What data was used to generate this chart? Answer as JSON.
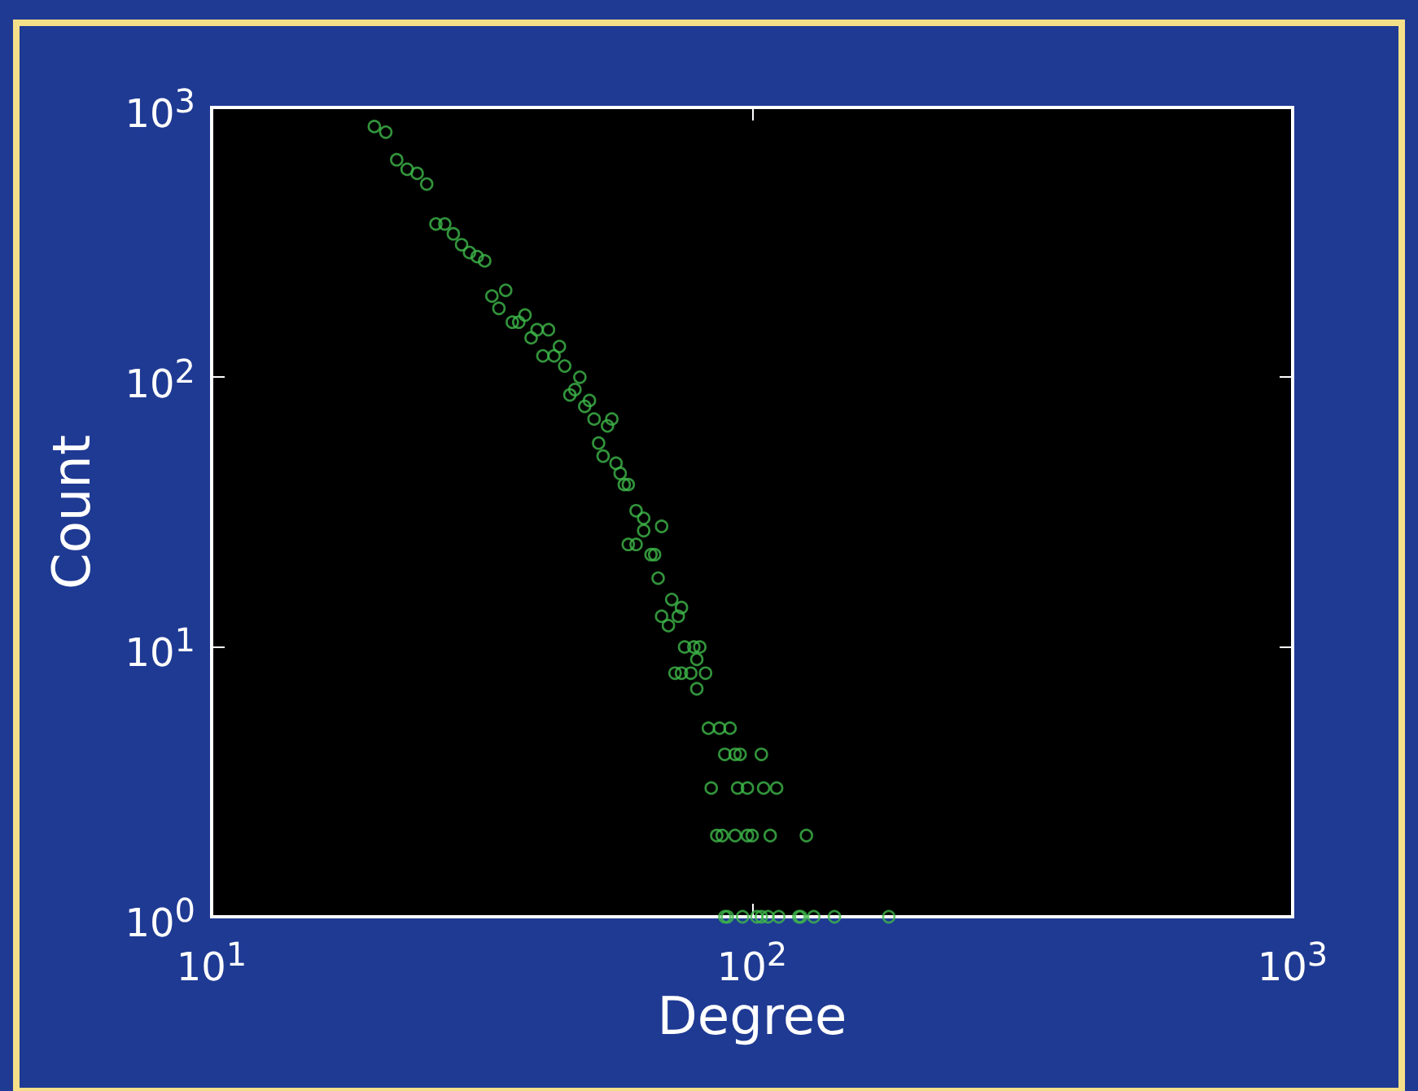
{
  "chart_data": {
    "type": "scatter",
    "xlabel": "Degree",
    "ylabel": "Count",
    "log": "xy",
    "grid": false,
    "marker": "circle",
    "color": "#3fb84a",
    "xlim": [
      10,
      1000
    ],
    "ylim": [
      1,
      1000
    ],
    "xticks": [
      {
        "value": 10,
        "label": "10$^{1}$"
      },
      {
        "value": 100,
        "label": "10$^{2}$"
      },
      {
        "value": 1000,
        "label": "10$^{3}$"
      }
    ],
    "yticks": [
      {
        "value": 1,
        "label": "10$^{0}$"
      },
      {
        "value": 10,
        "label": "10$^{1}$"
      },
      {
        "value": 100,
        "label": "10$^{2}$"
      },
      {
        "value": 1000,
        "label": "10$^{3}$"
      }
    ],
    "x": [
      20,
      21,
      22,
      23,
      24,
      25,
      26,
      27,
      28,
      29,
      30,
      31,
      32,
      33,
      35,
      34,
      36,
      37,
      38,
      39,
      40,
      42,
      41,
      43,
      44,
      45,
      48,
      46,
      47,
      49,
      50,
      51,
      55,
      54,
      52,
      53,
      56,
      57,
      58,
      59,
      61,
      63,
      63,
      68,
      59,
      61,
      65,
      66,
      67,
      71,
      74,
      68,
      73,
      70,
      75,
      78,
      80,
      79,
      72,
      74,
      77,
      82,
      79,
      83,
      87,
      91,
      89,
      93,
      95,
      104,
      84,
      94,
      98,
      105,
      111,
      86,
      88,
      93,
      98,
      100,
      108,
      126,
      89,
      90,
      96,
      102,
      104,
      107,
      112,
      122,
      123,
      130,
      142,
      179
    ],
    "values": [
      850,
      810,
      640,
      590,
      570,
      520,
      370,
      370,
      340,
      310,
      290,
      280,
      270,
      200,
      210,
      180,
      160,
      160,
      170,
      140,
      150,
      150,
      120,
      120,
      130,
      110,
      100,
      86,
      90,
      78,
      82,
      70,
      70,
      66,
      57,
      51,
      48,
      44,
      40,
      40,
      32,
      30,
      27,
      28,
      24,
      24,
      22,
      22,
      18,
      15,
      14,
      13,
      13,
      12,
      10,
      10,
      10,
      9,
      8,
      8,
      8,
      8,
      7,
      5,
      5,
      5,
      4,
      4,
      4,
      4,
      3,
      3,
      3,
      3,
      3,
      2,
      2,
      2,
      2,
      2,
      2,
      2,
      1,
      1,
      1,
      1,
      1,
      1,
      1,
      1,
      1,
      1,
      1,
      1
    ]
  }
}
